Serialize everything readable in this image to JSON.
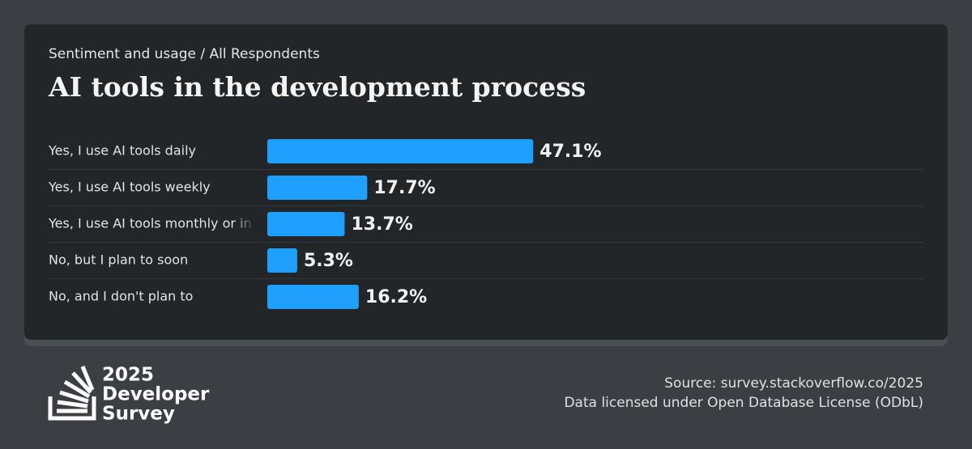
{
  "chart_data": {
    "type": "bar",
    "orientation": "horizontal",
    "subtitle": "Sentiment and usage / All Respondents",
    "title": "AI tools in the development process",
    "categories": [
      "Yes, I use AI tools daily",
      "Yes, I use AI tools weekly",
      "Yes, I use AI tools monthly or in",
      "No, but I plan to soon",
      "No, and I don't plan to"
    ],
    "values": [
      47.1,
      17.7,
      13.7,
      5.3,
      16.2
    ],
    "value_labels": [
      "47.1%",
      "17.7%",
      "13.7%",
      "5.3%",
      "16.2%"
    ],
    "color": "#1fa0ff"
  },
  "footer": {
    "logo": [
      "2025",
      "Developer",
      "Survey"
    ],
    "source": "Source: survey.stackoverflow.co/2025",
    "license": "Data licensed under Open Database License (ODbL)"
  }
}
